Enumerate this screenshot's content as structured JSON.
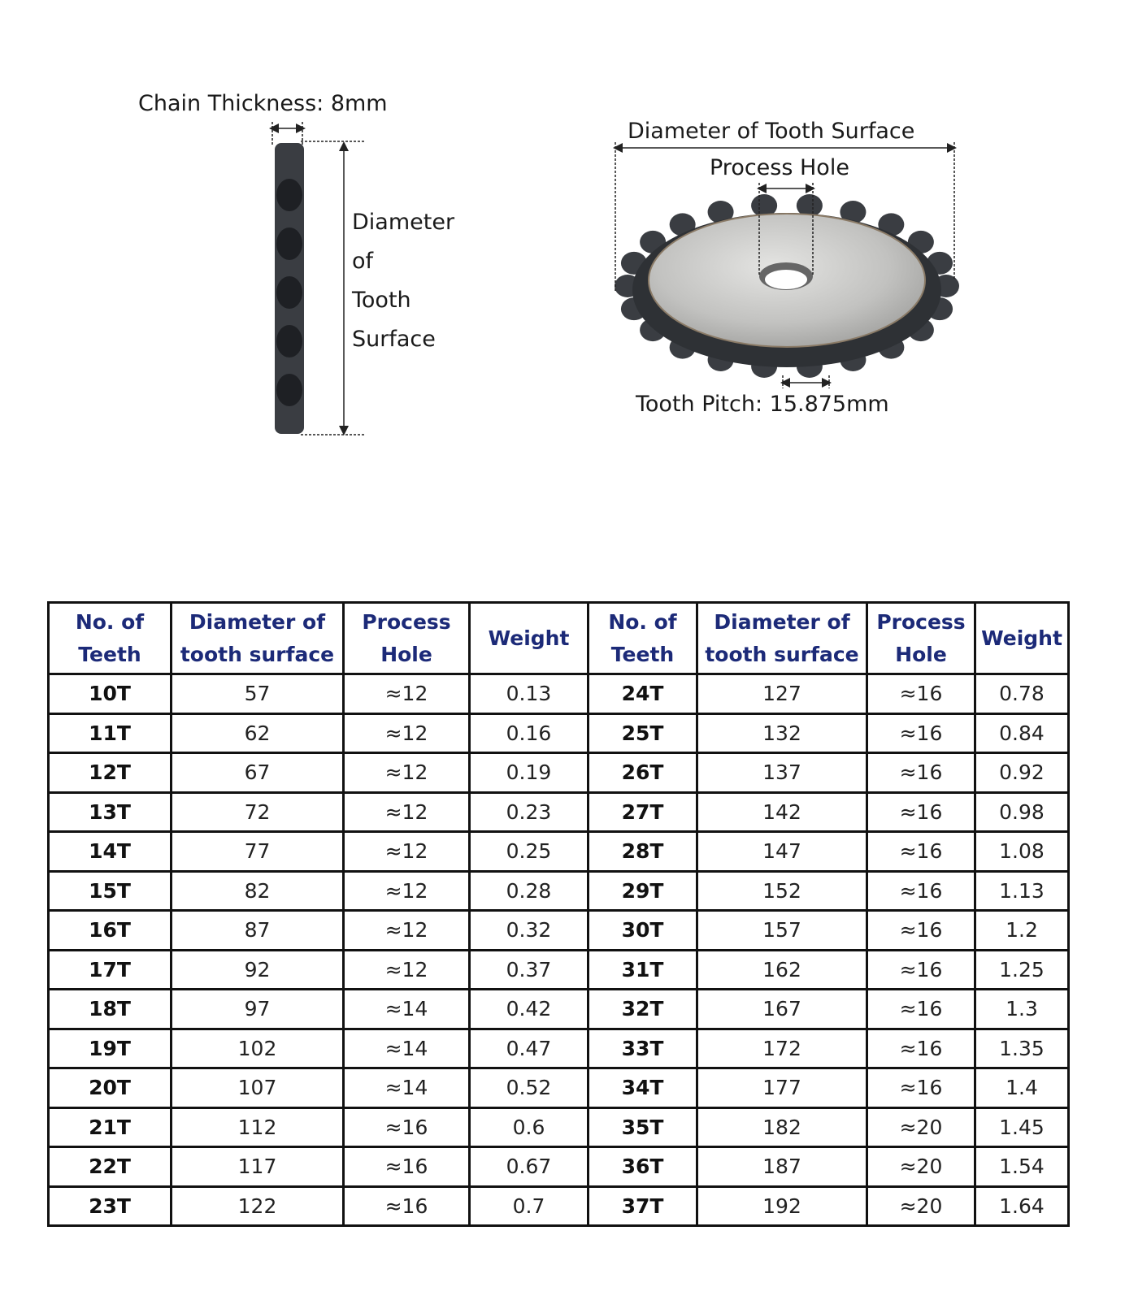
{
  "side_view": {
    "chain_thickness_label": "Chain Thickness: 8mm",
    "diameter_label_lines": [
      "Diameter",
      "of",
      "Tooth",
      "Surface"
    ]
  },
  "front_view": {
    "diameter_label": "Diameter of Tooth Surface",
    "process_hole_label": "Process Hole",
    "tooth_pitch_label": "Tooth Pitch: 15.875mm"
  },
  "colors": {
    "header_text": "#1c2a78",
    "sprocket_face": "#c9c9c7",
    "sprocket_teeth": "#3a3d42"
  },
  "table": {
    "headers": [
      [
        "No. of",
        "Teeth"
      ],
      [
        "Diameter of",
        "tooth surface"
      ],
      [
        "Process",
        "Hole"
      ],
      [
        "Weight"
      ],
      [
        "No. of",
        "Teeth"
      ],
      [
        "Diameter of",
        "tooth surface"
      ],
      [
        "Process",
        "Hole"
      ],
      [
        "Weight"
      ]
    ],
    "rows": [
      [
        "10T",
        "57",
        "≈12",
        "0.13",
        "24T",
        "127",
        "≈16",
        "0.78"
      ],
      [
        "11T",
        "62",
        "≈12",
        "0.16",
        "25T",
        "132",
        "≈16",
        "0.84"
      ],
      [
        "12T",
        "67",
        "≈12",
        "0.19",
        "26T",
        "137",
        "≈16",
        "0.92"
      ],
      [
        "13T",
        "72",
        "≈12",
        "0.23",
        "27T",
        "142",
        "≈16",
        "0.98"
      ],
      [
        "14T",
        "77",
        "≈12",
        "0.25",
        "28T",
        "147",
        "≈16",
        "1.08"
      ],
      [
        "15T",
        "82",
        "≈12",
        "0.28",
        "29T",
        "152",
        "≈16",
        "1.13"
      ],
      [
        "16T",
        "87",
        "≈12",
        "0.32",
        "30T",
        "157",
        "≈16",
        "1.2"
      ],
      [
        "17T",
        "92",
        "≈12",
        "0.37",
        "31T",
        "162",
        "≈16",
        "1.25"
      ],
      [
        "18T",
        "97",
        "≈14",
        "0.42",
        "32T",
        "167",
        "≈16",
        "1.3"
      ],
      [
        "19T",
        "102",
        "≈14",
        "0.47",
        "33T",
        "172",
        "≈16",
        "1.35"
      ],
      [
        "20T",
        "107",
        "≈14",
        "0.52",
        "34T",
        "177",
        "≈16",
        "1.4"
      ],
      [
        "21T",
        "112",
        "≈16",
        "0.6",
        "35T",
        "182",
        "≈20",
        "1.45"
      ],
      [
        "22T",
        "117",
        "≈16",
        "0.67",
        "36T",
        "187",
        "≈20",
        "1.54"
      ],
      [
        "23T",
        "122",
        "≈16",
        "0.7",
        "37T",
        "192",
        "≈20",
        "1.64"
      ]
    ]
  }
}
